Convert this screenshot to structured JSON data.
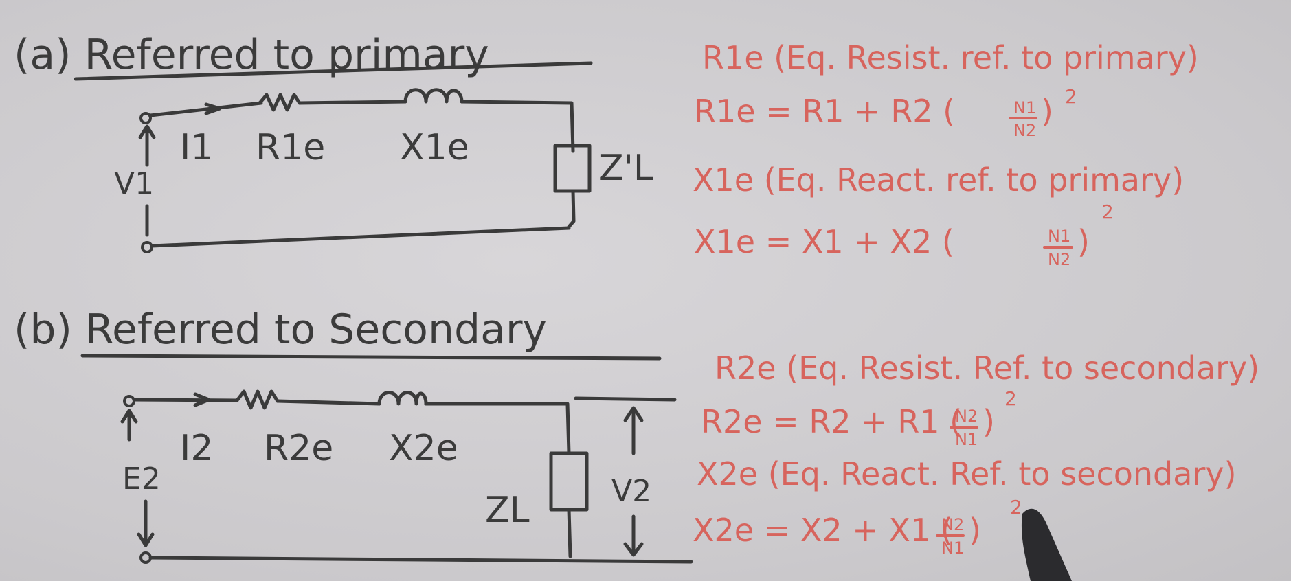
{
  "section_a": {
    "heading": "(a) Referred to primary",
    "labels": {
      "current": "I1",
      "resistance": "R1e",
      "reactance": "X1e",
      "voltage": "V1",
      "load": "Z'L"
    },
    "notes": {
      "r_desc": "R1e (Eq. Resist. ref. to primary)",
      "r_eq_lhs": "R1e = R1 + R2 (",
      "r_frac_num": "N1",
      "r_frac_den": "N2",
      "r_eq_tail": ")",
      "r_power": "2",
      "x_desc": "X1e (Eq. React. ref. to primary)",
      "x_eq_lhs": "X1e = X1 + X2 (",
      "x_frac_num": "N1",
      "x_frac_den": "N2",
      "x_eq_tail": ")",
      "x_power": "2"
    }
  },
  "section_b": {
    "heading": "(b) Referred to Secondary",
    "labels": {
      "current": "I2",
      "resistance": "R2e",
      "reactance": "X2e",
      "emf": "E2",
      "load": "ZL",
      "voltage": "V2"
    },
    "notes": {
      "r_desc": "R2e (Eq. Resist. Ref. to secondary)",
      "r_eq_lhs": "R2e = R2 + R1 (",
      "r_frac_num": "N2",
      "r_frac_den": "N1",
      "r_eq_tail": ")",
      "r_power": "2",
      "x_desc": "X2e (Eq. React. Ref. to secondary)",
      "x_eq_lhs": "X2e = X2 + X1 (",
      "x_frac_num": "N2",
      "x_frac_den": "N1",
      "x_eq_tail": ")",
      "x_power": "2"
    }
  },
  "colors": {
    "ink": "#3a3a3a",
    "red_ink": "#d7645d",
    "board": "#cfcdd0"
  }
}
